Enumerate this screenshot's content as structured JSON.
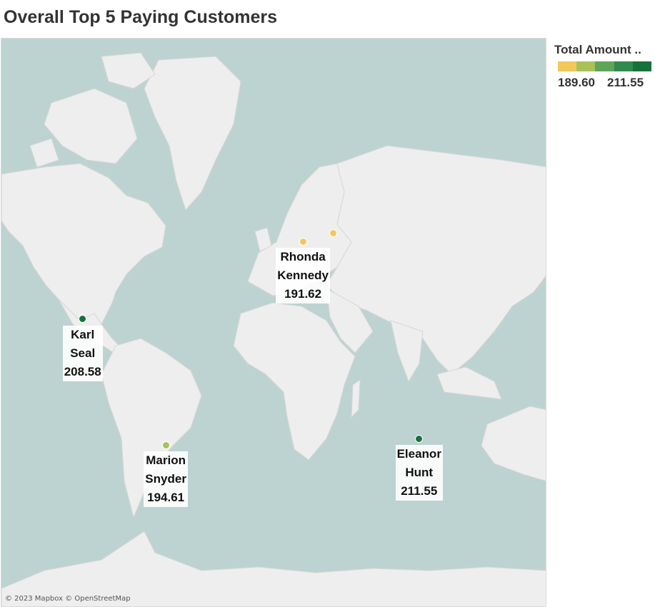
{
  "title": "Overall Top 5 Paying Customers",
  "legend": {
    "title": "Total Amount ..",
    "min_label": "189.60",
    "max_label": "211.55",
    "ramp_colors": [
      "#f3c85b",
      "#a9c15b",
      "#5ea55a",
      "#318a4d",
      "#16713a"
    ]
  },
  "attribution": "© 2023 Mapbox © OpenStreetMap",
  "chart_data": {
    "type": "scatter",
    "title": "Overall Top 5 Paying Customers",
    "color_by": "Total Amount",
    "points": [
      {
        "first_name": "Karl",
        "last_name": "Seal",
        "amount": "208.58",
        "color": "#16713a",
        "lat": 25.8,
        "lon": -80.2
      },
      {
        "first_name": "Rhonda",
        "last_name": "Kennedy",
        "amount": "191.62",
        "color": "#f3c85b",
        "lat": 50.1,
        "lon": 8.7
      },
      {
        "first_name": "Marion",
        "last_name": "Snyder",
        "amount": "194.61",
        "color": "#a9c15b",
        "lat": -23.5,
        "lon": -46.6
      },
      {
        "first_name": "Eleanor",
        "last_name": "Hunt",
        "amount": "211.55",
        "color": "#16713a",
        "lat": -21.1,
        "lon": 55.5
      },
      {
        "first_name": "",
        "last_name": "",
        "amount": "",
        "color": "#f3c85b",
        "lat": 52.2,
        "lon": 21.0
      }
    ]
  }
}
